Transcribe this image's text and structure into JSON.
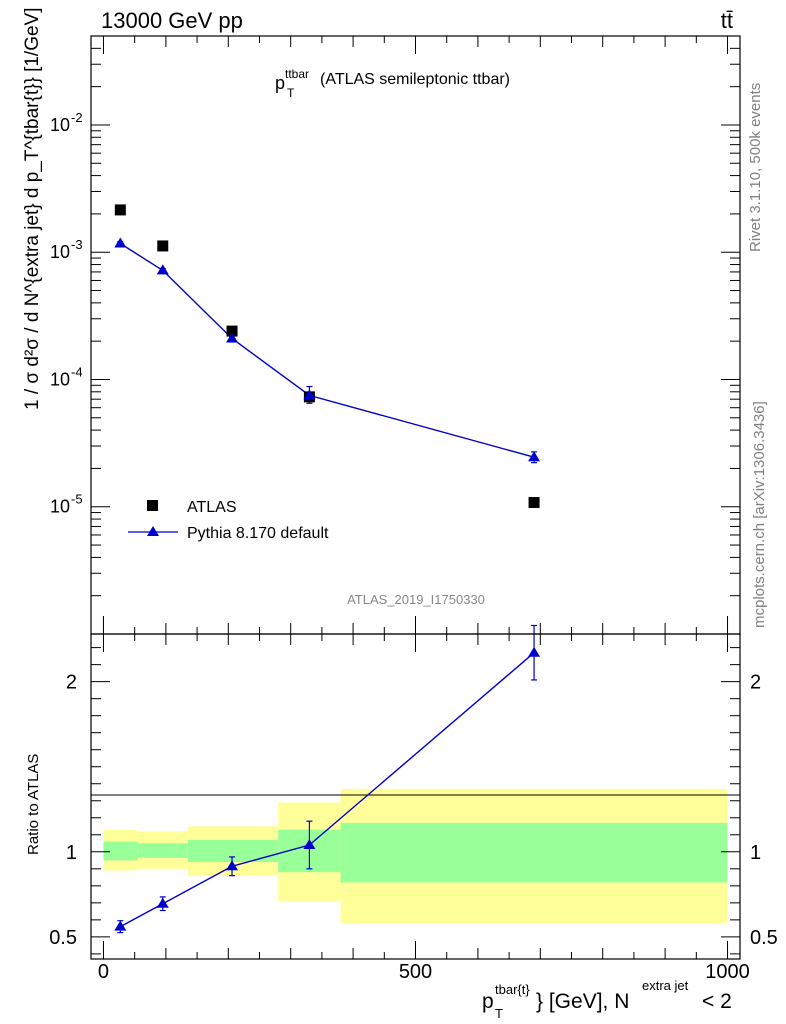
{
  "header": {
    "energy_label": "13000 GeV pp",
    "process_label": "tt̄"
  },
  "side_labels": {
    "rivet": "Rivet 3.1.10,  500k events",
    "mcplots": "mcplots.cern.ch [arXiv:1306.3436]"
  },
  "analysis_id": "ATLAS_2019_I1750330",
  "colors": {
    "mc": "#0000cc",
    "data": "#000000",
    "band_stat": "#99ff99",
    "band_total": "#ffff99"
  },
  "chart_data": [
    {
      "type": "scatter",
      "panel": "main",
      "title": {
        "main": "p",
        "sub": "T",
        "sup": "ttbar",
        "rest": " (ATLAS semileptonic ttbar)"
      },
      "ylabel": "1 / σ d²σ / d N^{extra jet} d p_T^{tbar{t}} [1/GeV]",
      "yscale": "log",
      "ylim": [
        1e-06,
        0.05
      ],
      "xlim": [
        -20,
        1020
      ],
      "y_ticks": [
        {
          "base": "10",
          "exp": "-2",
          "v": 0.01
        },
        {
          "base": "10",
          "exp": "-3",
          "v": 0.001
        },
        {
          "base": "10",
          "exp": "-4",
          "v": 0.0001
        },
        {
          "base": "10",
          "exp": "-5",
          "v": 1e-05
        }
      ],
      "legend": {
        "position": "bottom-left",
        "entries": [
          "ATLAS",
          "Pythia 8.170 default"
        ]
      },
      "series": [
        {
          "name": "ATLAS",
          "marker": "square",
          "x": [
            27,
            95,
            206,
            330,
            690
          ],
          "y": [
            0.00215,
            0.00112,
            0.00024,
            7.3e-05,
            1.08e-05
          ],
          "yerr_lo": [
            0,
            0,
            0,
            0,
            0
          ],
          "yerr_hi": [
            0,
            0,
            0,
            0,
            0
          ]
        },
        {
          "name": "Pythia 8.170 default",
          "marker": "triangle",
          "x": [
            27,
            95,
            206,
            330,
            690
          ],
          "y": [
            0.00117,
            0.00072,
            0.00021,
            7.5e-05,
            2.45e-05
          ],
          "yerr_lo": [
            4e-05,
            2.5e-05,
            1.3e-05,
            1e-05,
            2.3e-06
          ],
          "yerr_hi": [
            4e-05,
            2.5e-05,
            1.3e-05,
            1.3e-05,
            2.5e-06
          ]
        }
      ]
    },
    {
      "type": "line",
      "panel": "ratio",
      "ylabel": "Ratio to ATLAS",
      "ylim": [
        0.37,
        2.28
      ],
      "xlim": [
        -20,
        1020
      ],
      "y_ticks": [
        {
          "label": "2",
          "v": 2
        },
        {
          "label": "1",
          "v": 1
        },
        {
          "label": "0.5",
          "v": 0.5
        }
      ],
      "x_ticks": [
        {
          "label": "0",
          "v": 0
        },
        {
          "label": "500",
          "v": 500
        },
        {
          "label": "1000",
          "v": 1000
        }
      ],
      "xlabel": {
        "p": "p",
        "p_sup": "tbar{t}",
        "p_sub": "T",
        "mid": "} [GeV], N",
        "n_sup": "extra jet",
        "end": " < 2"
      },
      "bands": [
        {
          "x0": 0,
          "x1": 55,
          "stat": [
            0.95,
            1.06
          ],
          "total": [
            0.89,
            1.13
          ]
        },
        {
          "x0": 55,
          "x1": 135,
          "stat": [
            0.965,
            1.05
          ],
          "total": [
            0.9,
            1.12
          ]
        },
        {
          "x0": 135,
          "x1": 280,
          "stat": [
            0.94,
            1.07
          ],
          "total": [
            0.86,
            1.15
          ]
        },
        {
          "x0": 280,
          "x1": 380,
          "stat": [
            0.88,
            1.13
          ],
          "total": [
            0.71,
            1.29
          ]
        },
        {
          "x0": 380,
          "x1": 1000,
          "stat": [
            0.82,
            1.17
          ],
          "total": [
            0.58,
            1.37
          ]
        }
      ],
      "series": [
        {
          "name": "Pythia 8.170 default",
          "x": [
            27,
            95,
            206,
            330,
            690
          ],
          "y": [
            0.56,
            0.695,
            0.915,
            1.04,
            2.17
          ],
          "yerr_lo": [
            0.035,
            0.04,
            0.055,
            0.14,
            0.16
          ],
          "yerr_hi": [
            0.035,
            0.04,
            0.055,
            0.14,
            0.16
          ]
        }
      ]
    }
  ]
}
